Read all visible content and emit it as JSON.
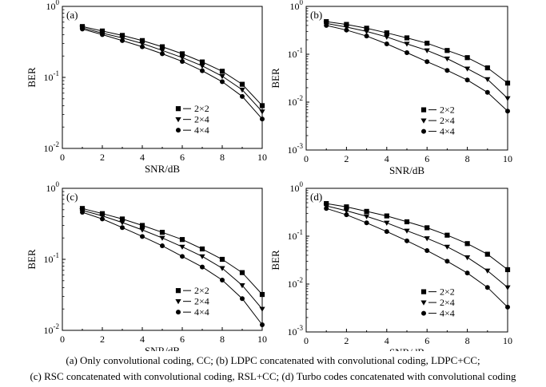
{
  "caption": {
    "line1": "(a)  Only convolutional coding, CC; (b) LDPC concatenated with convolutional coding, LDPC+CC;",
    "line2": "(c) RSC concatenated with convolutional coding, RSL+CC; (d) Turbo codes concatenated with convolutional coding"
  },
  "chart_data": [
    {
      "type": "line",
      "panel_label": "(a)",
      "xlabel": "SNR/dB",
      "ylabel": "BER",
      "xlim": [
        0,
        10
      ],
      "xticks": [
        0,
        2,
        4,
        6,
        8,
        10
      ],
      "ylim": [
        0.01,
        1
      ],
      "yscale": "log",
      "ytick_exponents": [
        0,
        -1,
        -2
      ],
      "legend_position": "middle-right",
      "x": [
        1,
        2,
        3,
        4,
        5,
        6,
        7,
        8,
        9,
        10
      ],
      "series": [
        {
          "name": "2×2",
          "marker": "square",
          "values": [
            0.52,
            0.45,
            0.39,
            0.33,
            0.27,
            0.215,
            0.165,
            0.122,
            0.08,
            0.04
          ]
        },
        {
          "name": "2×4",
          "marker": "triangle-down",
          "values": [
            0.5,
            0.42,
            0.36,
            0.3,
            0.24,
            0.19,
            0.145,
            0.104,
            0.067,
            0.033
          ]
        },
        {
          "name": "4×4",
          "marker": "circle",
          "values": [
            0.48,
            0.4,
            0.33,
            0.27,
            0.215,
            0.168,
            0.124,
            0.087,
            0.054,
            0.026
          ]
        }
      ]
    },
    {
      "type": "line",
      "panel_label": "(b)",
      "xlabel": "SNR/dB",
      "ylabel": "BER",
      "xlim": [
        0,
        10
      ],
      "xticks": [
        0,
        2,
        4,
        6,
        8,
        10
      ],
      "ylim": [
        0.001,
        1
      ],
      "yscale": "log",
      "ytick_exponents": [
        0,
        -1,
        -2,
        -3
      ],
      "legend_position": "middle-right",
      "x": [
        1,
        2,
        3,
        4,
        5,
        6,
        7,
        8,
        9,
        10
      ],
      "series": [
        {
          "name": "2×2",
          "marker": "square",
          "values": [
            0.48,
            0.42,
            0.35,
            0.28,
            0.22,
            0.17,
            0.12,
            0.085,
            0.052,
            0.025
          ]
        },
        {
          "name": "2×4",
          "marker": "triangle-down",
          "values": [
            0.44,
            0.37,
            0.3,
            0.23,
            0.165,
            0.12,
            0.081,
            0.05,
            0.03,
            0.012
          ]
        },
        {
          "name": "4×4",
          "marker": "circle",
          "values": [
            0.4,
            0.32,
            0.24,
            0.165,
            0.108,
            0.07,
            0.046,
            0.029,
            0.016,
            0.0065
          ]
        }
      ]
    },
    {
      "type": "line",
      "panel_label": "(c)",
      "xlabel": "SNR/dB",
      "ylabel": "BER",
      "xlim": [
        0,
        10
      ],
      "xticks": [
        0,
        2,
        4,
        6,
        8,
        10
      ],
      "ylim": [
        0.01,
        1
      ],
      "yscale": "log",
      "ytick_exponents": [
        0,
        -1,
        -2
      ],
      "legend_position": "middle-right",
      "x": [
        1,
        2,
        3,
        4,
        5,
        6,
        7,
        8,
        9,
        10
      ],
      "series": [
        {
          "name": "2×2",
          "marker": "square",
          "values": [
            0.52,
            0.44,
            0.37,
            0.3,
            0.24,
            0.19,
            0.14,
            0.1,
            0.065,
            0.032
          ]
        },
        {
          "name": "2×4",
          "marker": "triangle-down",
          "values": [
            0.49,
            0.41,
            0.33,
            0.26,
            0.2,
            0.15,
            0.11,
            0.075,
            0.043,
            0.02
          ]
        },
        {
          "name": "4×4",
          "marker": "circle",
          "values": [
            0.46,
            0.37,
            0.28,
            0.21,
            0.155,
            0.11,
            0.078,
            0.051,
            0.028,
            0.012
          ]
        }
      ]
    },
    {
      "type": "line",
      "panel_label": "(d)",
      "xlabel": "SNR/dB",
      "ylabel": "BER",
      "xlim": [
        0,
        10
      ],
      "xticks": [
        0,
        2,
        4,
        6,
        8,
        10
      ],
      "ylim": [
        0.001,
        1
      ],
      "yscale": "log",
      "ytick_exponents": [
        0,
        -1,
        -2,
        -3
      ],
      "legend_position": "middle-right",
      "x": [
        1,
        2,
        3,
        4,
        5,
        6,
        7,
        8,
        9,
        10
      ],
      "series": [
        {
          "name": "2×2",
          "marker": "square",
          "values": [
            0.48,
            0.41,
            0.33,
            0.265,
            0.2,
            0.15,
            0.105,
            0.07,
            0.042,
            0.02
          ]
        },
        {
          "name": "2×4",
          "marker": "triangle-down",
          "values": [
            0.43,
            0.34,
            0.26,
            0.19,
            0.13,
            0.09,
            0.06,
            0.036,
            0.019,
            0.0085
          ]
        },
        {
          "name": "4×4",
          "marker": "circle",
          "values": [
            0.38,
            0.28,
            0.19,
            0.125,
            0.08,
            0.05,
            0.03,
            0.017,
            0.0085,
            0.0033
          ]
        }
      ]
    }
  ]
}
